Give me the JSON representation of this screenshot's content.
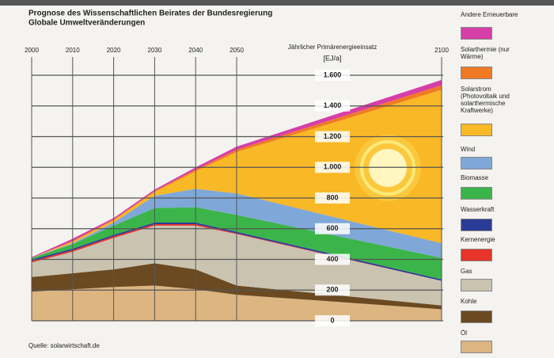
{
  "chart_data": {
    "type": "stacked_area",
    "title": "Prognose des Wissenschaftlichen Beirates der Bundesregierung",
    "subtitle": "Globale Umweltveränderungen",
    "y_label": "Jährlicher Primärenergieeinsatz",
    "y_unit": "[EJ/a]",
    "source": "Quelle: solarwirtschaft.de",
    "x": [
      2000,
      2010,
      2020,
      2030,
      2040,
      2050,
      2100
    ],
    "xlim": [
      2000,
      2100
    ],
    "xticks": [
      2000,
      2010,
      2020,
      2030,
      2040,
      2050,
      2100
    ],
    "ylim": [
      0,
      1600
    ],
    "yticks": [
      0,
      200,
      400,
      600,
      800,
      {
        "value": 1000,
        "label": "1.000"
      },
      {
        "value": 1200,
        "label": "1.200"
      },
      {
        "value": 1400,
        "label": "1.400"
      },
      {
        "value": 1600,
        "label": "1.600"
      }
    ],
    "grid": true,
    "series": [
      {
        "name": "Öl",
        "color": "#ddb581",
        "values": [
          190,
          205,
          220,
          230,
          205,
          170,
          75
        ]
      },
      {
        "name": "Kohle",
        "color": "#6b4a22",
        "values": [
          95,
          105,
          115,
          145,
          130,
          60,
          25
        ]
      },
      {
        "name": "Gas",
        "color": "#c9c3b0",
        "values": [
          95,
          140,
          205,
          245,
          285,
          335,
          160
        ]
      },
      {
        "name": "Kernenergie",
        "color": "#e8332a",
        "values": [
          10,
          10,
          10,
          10,
          10,
          5,
          0
        ]
      },
      {
        "name": "Wasserkraft",
        "color": "#2a3c96",
        "values": [
          10,
          10,
          10,
          10,
          10,
          10,
          10
        ]
      },
      {
        "name": "Biomasse",
        "color": "#3bb54a",
        "values": [
          10,
          30,
          60,
          95,
          100,
          110,
          140
        ]
      },
      {
        "name": "Wind",
        "color": "#7fa7d8",
        "values": [
          0,
          5,
          20,
          80,
          120,
          140,
          95
        ]
      },
      {
        "name": "Solarstrom (Photovoltaik und solarthermische Kraftwerke)",
        "color": "#f9b826",
        "values": [
          0,
          10,
          15,
          25,
          115,
          270,
          1000
        ]
      },
      {
        "name": "Solarthermie (nur Wärme)",
        "color": "#f07a24",
        "values": [
          0,
          5,
          5,
          5,
          10,
          15,
          30
        ]
      },
      {
        "name": "Andere Erneuerbare",
        "color": "#d63ea8",
        "values": [
          5,
          15,
          10,
          10,
          15,
          20,
          35
        ]
      }
    ]
  }
}
